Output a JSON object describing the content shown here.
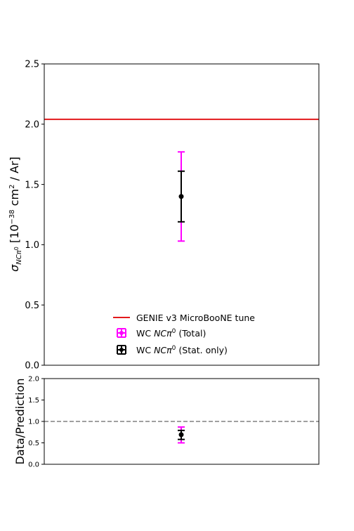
{
  "chart_data": [
    {
      "type": "scatter",
      "panel": "main",
      "ylabel": "σNCπ⁰ [10⁻³⁸ cm² / Ar]",
      "ylim": [
        0.0,
        2.5
      ],
      "yticks": [
        0.0,
        0.5,
        1.0,
        1.5,
        2.0,
        2.5
      ],
      "ytick_labels": [
        "0.0",
        "0.5",
        "1.0",
        "1.5",
        "2.0",
        "2.5"
      ],
      "xticks": [],
      "grid": false,
      "legend_placement": "lower-center",
      "prediction": {
        "name": "GENIE v3 MicroBooNE tune",
        "value": 2.04,
        "color": "#e31a1c"
      },
      "measurement": {
        "value": 1.4,
        "total_err": [
          1.03,
          1.77
        ],
        "stat_err": [
          1.19,
          1.61
        ],
        "total_name": "WC NCπ0 (Total)",
        "stat_name": "WC NCπ0 (Stat. only)",
        "total_color": "#ff00ff",
        "stat_color": "#000000"
      }
    },
    {
      "type": "scatter",
      "panel": "ratio",
      "ylabel": "Data/Prediction",
      "ylim": [
        0.0,
        2.0
      ],
      "yticks": [
        0.0,
        0.5,
        1.0,
        1.5,
        2.0
      ],
      "ytick_labels": [
        "0.0",
        "0.5",
        "1.0",
        "1.5",
        "2.0"
      ],
      "xticks": [],
      "reference_line": 1.0,
      "reference_color": "#808080",
      "ratio": {
        "value": 0.69,
        "total_err": [
          0.5,
          0.87
        ],
        "stat_err": [
          0.58,
          0.79
        ]
      }
    }
  ],
  "legend": {
    "entries": [
      {
        "prefix": "GENIE v3 MicroBooNE tune",
        "italic": "",
        "suffix": ""
      },
      {
        "prefix": "WC ",
        "italic": "NCπ",
        "sup": "0",
        "suffix": " (Total)"
      },
      {
        "prefix": "WC ",
        "italic": "NCπ",
        "sup": "0",
        "suffix": " (Stat. only)"
      }
    ]
  }
}
